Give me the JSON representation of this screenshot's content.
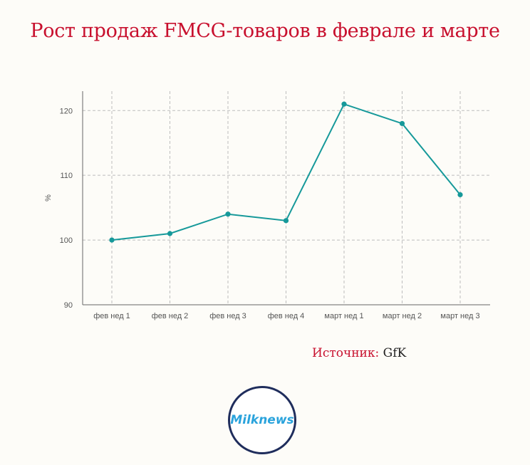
{
  "title": "Рост продаж FMCG-товаров в феврале и марте",
  "source": {
    "label": "Источник:",
    "value": "GfK"
  },
  "logo": {
    "text": "Milknews"
  },
  "colors": {
    "title": "#c8102e",
    "line": "#16999a",
    "grid": "#bdbdbd",
    "axis": "#555555"
  },
  "chart_data": {
    "type": "line",
    "title": "Рост продаж FMCG-товаров в феврале и марте",
    "xlabel": "",
    "ylabel": "%",
    "ylim": [
      90,
      123
    ],
    "yticks": [
      90,
      100,
      110,
      120
    ],
    "grid": true,
    "categories": [
      "фев нед 1",
      "фев нед 2",
      "фев нед 3",
      "фев нед 4",
      "март нед 1",
      "март нед 2",
      "март нед 3"
    ],
    "series": [
      {
        "values": [
          100,
          101,
          104,
          103,
          121,
          118,
          107
        ]
      }
    ]
  }
}
